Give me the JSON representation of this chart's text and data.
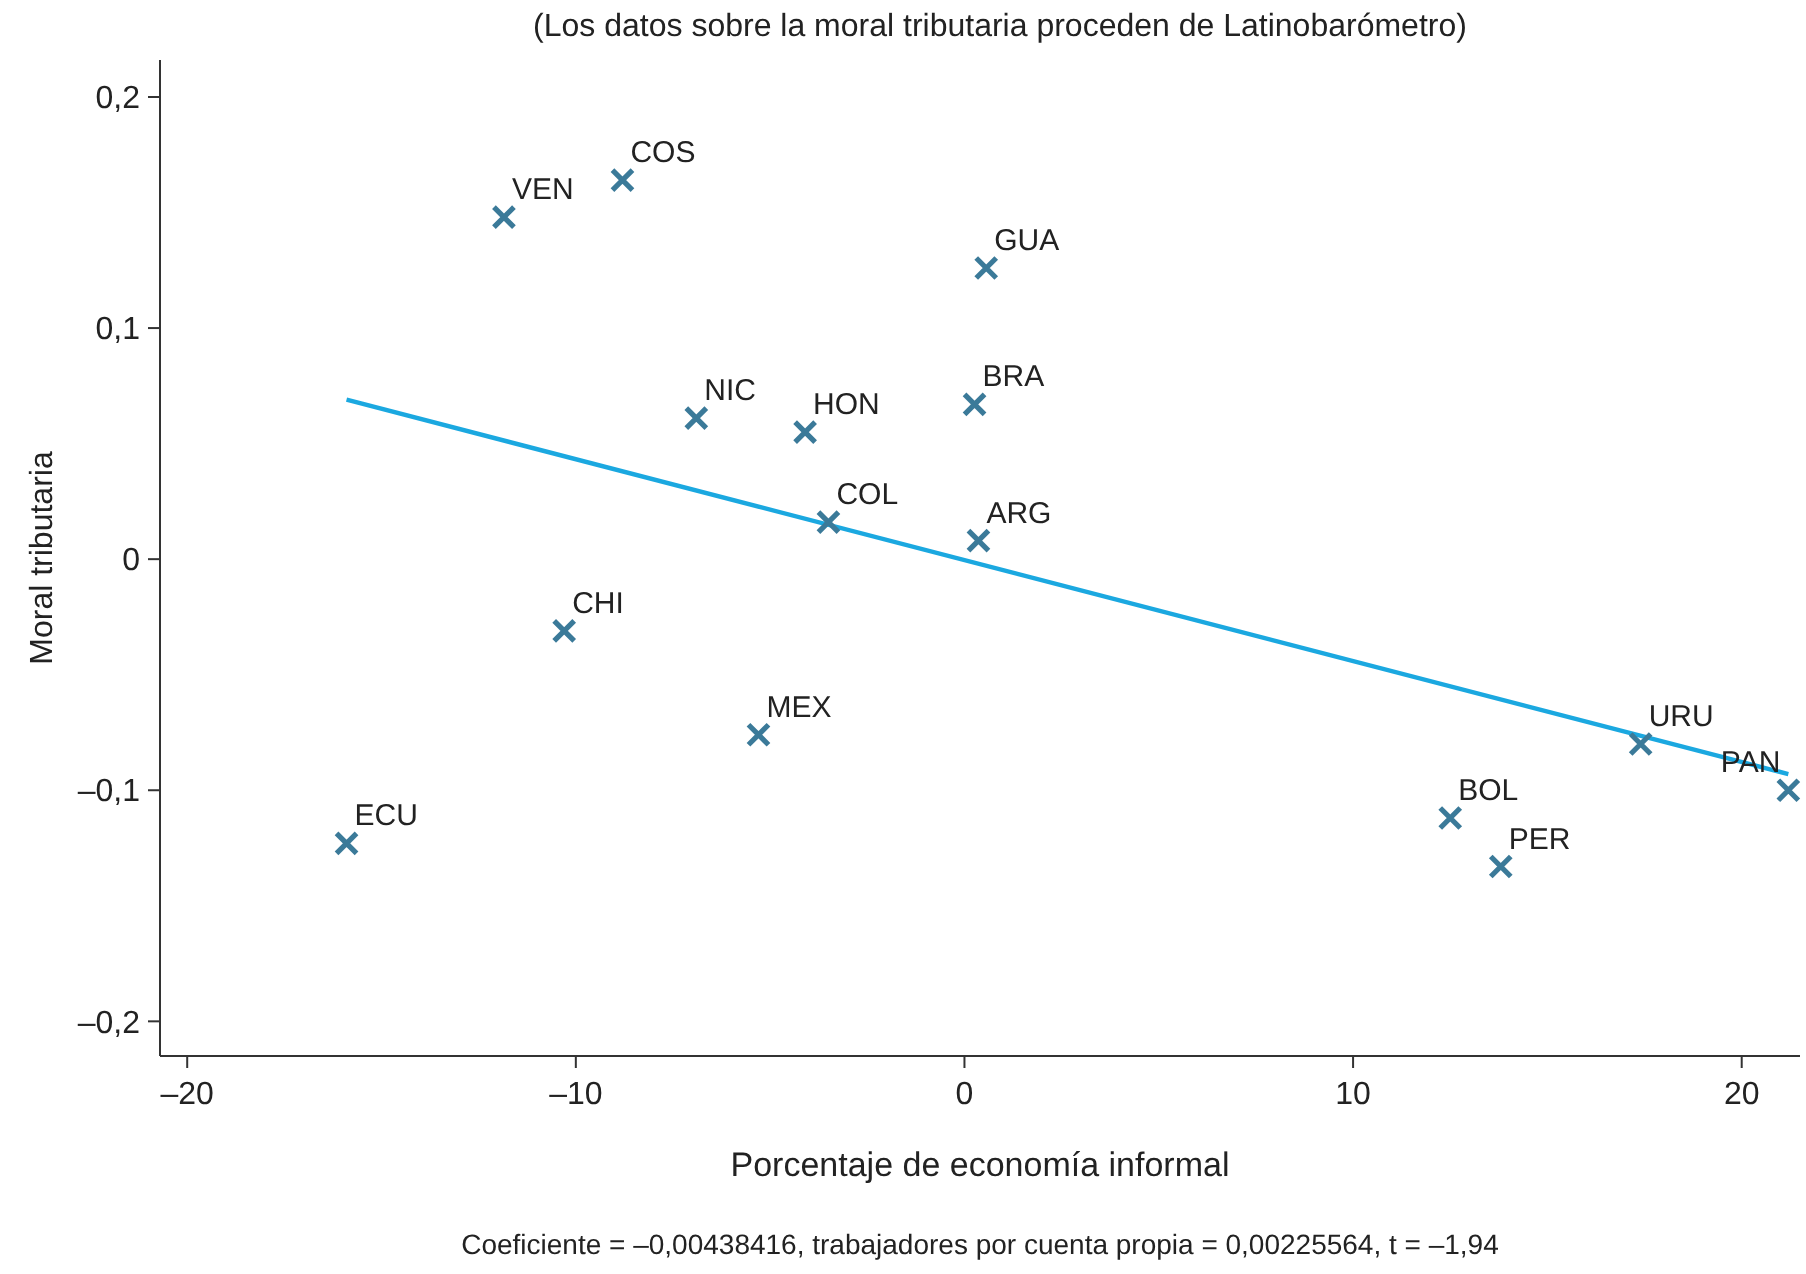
{
  "chart_data": {
    "type": "scatter",
    "title": "(Los datos sobre la moral tributaria proceden de Latinobarómetro)",
    "xlabel": "Porcentaje de economía informal",
    "ylabel": "Moral tributaria",
    "xlim": [
      -20.7,
      21.5
    ],
    "ylim": [
      -0.215,
      0.216
    ],
    "xticks": [
      {
        "value": -20,
        "label": "–20"
      },
      {
        "value": -10,
        "label": "–10"
      },
      0,
      10,
      20
    ],
    "yticks": [
      {
        "value": -0.2,
        "label": "–0,2"
      },
      {
        "value": -0.1,
        "label": "–0,1"
      },
      0,
      {
        "value": 0.1,
        "label": "0,1"
      },
      {
        "value": 0.2,
        "label": "0,2"
      }
    ],
    "grid": false,
    "marker": "cross",
    "series": [
      {
        "color": "#3b7a99",
        "x": [
          -11.85,
          -8.8,
          0.56,
          -6.9,
          -4.1,
          0.26,
          -3.5,
          0.36,
          -10.3,
          -5.3,
          -15.9,
          12.5,
          13.8,
          17.4,
          21.2
        ],
        "values": [
          0.148,
          0.164,
          0.126,
          0.061,
          0.055,
          0.067,
          0.016,
          0.008,
          -0.031,
          -0.076,
          -0.123,
          -0.112,
          -0.133,
          -0.08,
          -0.1
        ]
      },
      {
        "type": "line",
        "color": "#1ba8e0",
        "marker": "none",
        "line_style": "solid",
        "x": [
          -15.9,
          21.2
        ],
        "values": [
          0.069,
          -0.093
        ]
      }
    ],
    "annotations": [
      {
        "text": "VEN",
        "x": -11.85,
        "y": 0.148
      },
      {
        "text": "COS",
        "x": -8.8,
        "y": 0.164
      },
      {
        "text": "GUA",
        "x": 0.56,
        "y": 0.126
      },
      {
        "text": "NIC",
        "x": -6.9,
        "y": 0.061
      },
      {
        "text": "HON",
        "x": -4.1,
        "y": 0.055
      },
      {
        "text": "BRA",
        "x": 0.26,
        "y": 0.067
      },
      {
        "text": "COL",
        "x": -3.5,
        "y": 0.016
      },
      {
        "text": "ARG",
        "x": 0.36,
        "y": 0.008
      },
      {
        "text": "CHI",
        "x": -10.3,
        "y": -0.031
      },
      {
        "text": "MEX",
        "x": -5.3,
        "y": -0.076
      },
      {
        "text": "ECU",
        "x": -15.9,
        "y": -0.123
      },
      {
        "text": "BOL",
        "x": 12.5,
        "y": -0.112
      },
      {
        "text": "PER",
        "x": 13.8,
        "y": -0.133
      },
      {
        "text": "URU",
        "x": 17.4,
        "y": -0.08
      },
      {
        "text": "PAN",
        "x": 21.2,
        "y": -0.1
      },
      "Coeficiente = –0,00438416, trabajadores por cuenta propia = 0,00225564, t = –1,94"
    ]
  }
}
